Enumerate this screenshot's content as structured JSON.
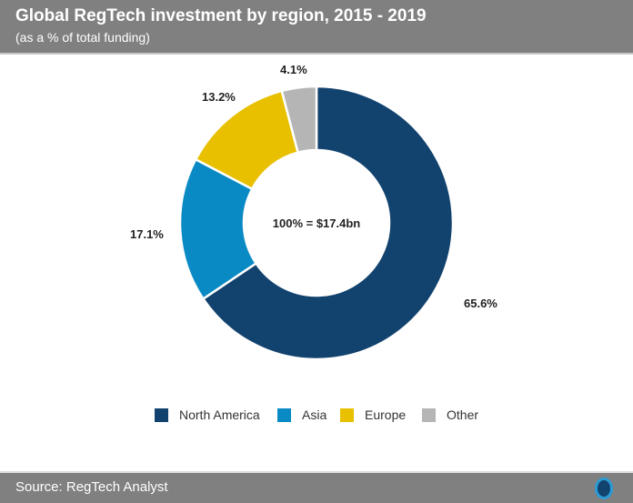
{
  "header": {
    "title": "Global RegTech investment by region, 2015 - 2019",
    "subtitle": "(as a % of total funding)"
  },
  "footer": {
    "source": "Source: RegTech Analyst",
    "logo_icon": "regtech-analyst-logo"
  },
  "chart_data": {
    "type": "pie",
    "donut": true,
    "title": "Global RegTech investment by region, 2015 - 2019",
    "subtitle": "(as a % of total funding)",
    "center_label": "100% = $17.4bn",
    "categories": [
      "North America",
      "Asia",
      "Europe",
      "Other"
    ],
    "values": [
      65.6,
      17.1,
      13.2,
      4.1
    ],
    "data_labels": [
      "65.6%",
      "17.1%",
      "13.2%",
      "4.1%"
    ],
    "colors": [
      "#12426e",
      "#0a8ac4",
      "#e8c000",
      "#b5b5b5"
    ],
    "legend_position": "bottom"
  }
}
